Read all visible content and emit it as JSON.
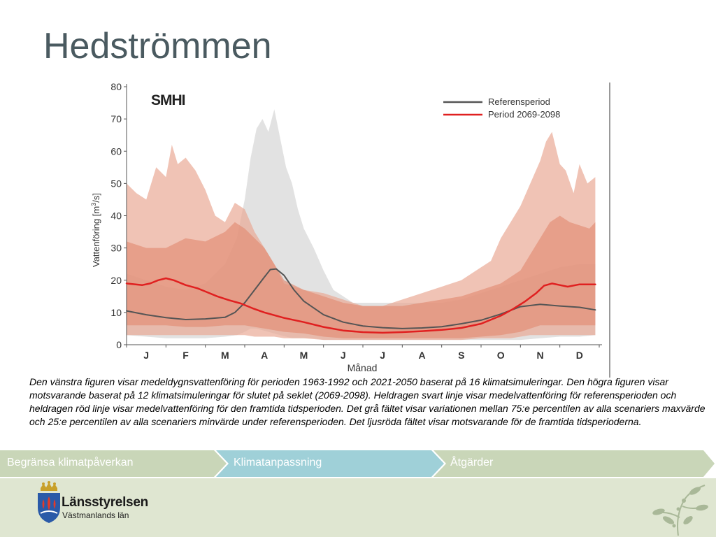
{
  "slide": {
    "title": "Hedströmmen"
  },
  "chart_data": {
    "type": "area",
    "logo_text": "SMHI",
    "ylabel_prefix": "Vattenföring [m",
    "ylabel_sup": "3",
    "ylabel_suffix": "/s]",
    "xlabel": "Månad",
    "ylim": [
      0,
      80
    ],
    "yticks": [
      0,
      10,
      20,
      30,
      40,
      50,
      60,
      70,
      80
    ],
    "xlim": [
      0,
      12
    ],
    "months": [
      "J",
      "F",
      "M",
      "A",
      "M",
      "J",
      "J",
      "A",
      "S",
      "O",
      "N",
      "D"
    ],
    "legend_position": "top-right",
    "series": [
      {
        "name": "Referensperiod",
        "color": "#555555",
        "x": [
          0,
          0.5,
          1,
          1.5,
          2,
          2.5,
          2.75,
          3,
          3.25,
          3.5,
          3.65,
          3.8,
          4,
          4.25,
          4.5,
          5,
          5.5,
          6,
          6.5,
          7,
          7.5,
          8,
          8.5,
          9,
          9.5,
          10,
          10.5,
          11,
          11.5,
          11.9
        ],
        "y": [
          10.5,
          9.3,
          8.4,
          7.8,
          8,
          8.5,
          10,
          13,
          17,
          21,
          23.3,
          23.5,
          21.5,
          17,
          13.5,
          9.3,
          7,
          5.8,
          5.3,
          5,
          5.2,
          5.6,
          6.5,
          7.6,
          9.5,
          11.8,
          12.5,
          12,
          11.6,
          10.8
        ]
      },
      {
        "name": "Period 2069-2098",
        "color": "#e02020",
        "x": [
          0,
          0.4,
          0.6,
          0.8,
          1,
          1.2,
          1.5,
          1.8,
          2,
          2.3,
          2.6,
          2.9,
          3.2,
          3.5,
          4,
          4.5,
          5,
          5.5,
          6,
          6.5,
          7,
          7.5,
          8,
          8.5,
          9,
          9.5,
          9.8,
          10.1,
          10.4,
          10.6,
          10.8,
          11,
          11.2,
          11.5,
          11.9
        ],
        "y": [
          19,
          18.5,
          19,
          20,
          20.6,
          20,
          18.5,
          17.5,
          16.5,
          15,
          13.8,
          12.8,
          11.3,
          10,
          8.3,
          7,
          5.5,
          4.4,
          3.9,
          3.7,
          3.9,
          4.2,
          4.6,
          5.2,
          6.5,
          9,
          11,
          13.3,
          16,
          18.3,
          19,
          18.5,
          18,
          18.7,
          18.7
        ]
      }
    ],
    "bands": [
      {
        "kind": "reference range (grey)",
        "color": "#d8d8d8",
        "x": [
          0,
          0.5,
          1,
          1.5,
          2,
          2.5,
          2.8,
          3,
          3.15,
          3.3,
          3.45,
          3.6,
          3.75,
          3.9,
          4.05,
          4.2,
          4.35,
          4.5,
          4.75,
          5,
          5.25,
          5.5,
          5.75,
          6,
          6.5,
          7,
          7.5,
          8,
          8.5,
          9,
          9.5,
          10,
          10.5,
          11,
          11.5,
          11.9
        ],
        "upper": [
          22,
          20,
          18,
          17,
          19,
          25,
          33,
          45,
          58,
          67,
          70,
          66,
          73,
          64,
          55,
          50,
          42,
          36,
          30,
          23,
          17,
          15,
          13,
          13,
          13,
          13,
          13,
          13,
          14,
          16,
          18,
          20,
          22,
          24,
          25,
          25
        ],
        "lower": [
          3,
          2.5,
          2,
          2,
          2,
          2.5,
          3,
          4,
          5,
          5,
          4.5,
          4,
          3.5,
          3,
          2.5,
          2,
          2,
          2,
          2,
          1.5,
          1.5,
          1.5,
          1.5,
          1.5,
          1.5,
          1.5,
          1.5,
          1.5,
          1.5,
          1.5,
          1.5,
          1.5,
          2,
          2.5,
          2.5,
          3
        ]
      },
      {
        "kind": "future range (light red)",
        "color": "#e9a995",
        "x": [
          0,
          0.25,
          0.5,
          0.75,
          1,
          1.15,
          1.3,
          1.5,
          1.75,
          2,
          2.25,
          2.5,
          2.75,
          3,
          3.25,
          3.5,
          3.75,
          4,
          4.5,
          5,
          5.5,
          6,
          6.5,
          7,
          7.5,
          8,
          8.5,
          9,
          9.25,
          9.5,
          9.75,
          10,
          10.25,
          10.5,
          10.65,
          10.8,
          11,
          11.15,
          11.35,
          11.5,
          11.7,
          11.9
        ],
        "upper": [
          50,
          47,
          45,
          55,
          52,
          62,
          56,
          58,
          54,
          48,
          40,
          38,
          44,
          42,
          35,
          30,
          25,
          19,
          17,
          16,
          14,
          12,
          12,
          14,
          16,
          18,
          20,
          24,
          26,
          33,
          38,
          43,
          50,
          57,
          63,
          66,
          56,
          54,
          47,
          56,
          50,
          52
        ],
        "lower": [
          3,
          3,
          3,
          3,
          3,
          3,
          3,
          3,
          3,
          3,
          3,
          3,
          3,
          3,
          2.5,
          2.5,
          2.5,
          2,
          2,
          1.5,
          1.5,
          1.5,
          1.5,
          1.5,
          1.5,
          1.5,
          1.5,
          2,
          2,
          2,
          2,
          2.5,
          3,
          3,
          3,
          3,
          3,
          3,
          3,
          3,
          3,
          3
        ]
      },
      {
        "kind": "future inner range (red)",
        "color": "#e39077",
        "x": [
          0,
          0.5,
          1,
          1.5,
          2,
          2.5,
          2.75,
          3,
          3.25,
          3.5,
          3.75,
          4,
          4.5,
          5,
          5.5,
          6,
          6.5,
          7,
          7.5,
          8,
          8.5,
          9,
          9.5,
          10,
          10.25,
          10.5,
          10.75,
          11,
          11.25,
          11.5,
          11.75,
          11.9
        ],
        "upper": [
          32,
          30,
          30,
          33,
          32,
          35,
          38,
          36,
          33,
          30,
          25,
          20,
          17,
          15,
          13,
          12,
          12,
          12,
          13,
          14,
          15,
          17,
          19,
          23,
          28,
          33,
          38,
          40,
          38,
          37,
          36,
          38
        ],
        "lower": [
          6,
          6,
          6,
          5.5,
          5.5,
          6,
          6,
          6,
          5.5,
          5,
          4.5,
          4,
          3.5,
          2.5,
          2,
          2,
          2,
          2,
          2,
          2,
          2,
          2.5,
          3,
          4,
          5,
          6,
          6,
          6,
          6,
          6,
          6,
          6
        ]
      }
    ]
  },
  "caption": "Den vänstra figuren visar medeldygnsvattenföring för perioden 1963-1992 och 2021-2050 baserat på 16 klimatsimuleringar. Den högra figuren visar motsvarande baserat på 12 klimatsimuleringar för slutet på seklet (2069-2098). Heldragen svart linje visar medelvattenföring för referensperioden och heldragen röd linje visar medelvattenföring för den framtida tidsperioden. Det grå fältet visar variationen mellan 75:e percentilen av alla scenariers maxvärde och 25:e percentilen av alla scenariers minvärde under referensperioden. Det ljusröda fältet visar motsvarande för de framtida tidsperioderna.",
  "nav": {
    "items": [
      {
        "label": "Begränsa klimatpåverkan",
        "color": "#c9d6b8"
      },
      {
        "label": "Klimatanpassning",
        "color": "#9fd0d8"
      },
      {
        "label": "Åtgärder",
        "color": "#c9d6b8"
      }
    ]
  },
  "footer": {
    "org_name": "Länsstyrelsen",
    "org_region": "Västmanlands län"
  }
}
